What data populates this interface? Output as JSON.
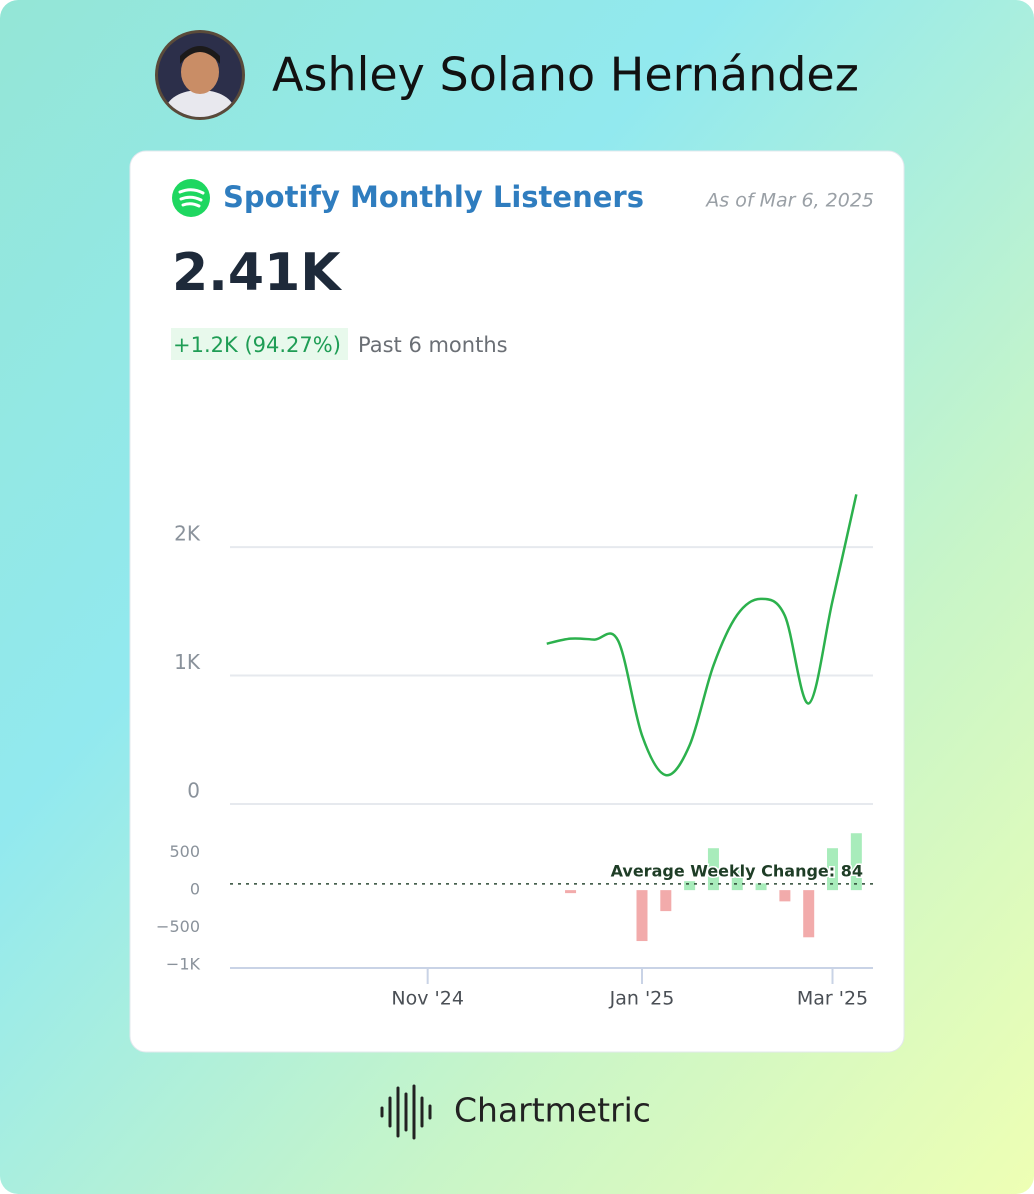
{
  "header": {
    "artist_name": "Ashley Solano Hernández"
  },
  "card": {
    "title": "Spotify Monthly Listeners",
    "as_of": "As of Mar 6, 2025",
    "current_value": "2.41K",
    "change": "+1.2K (94.27%)",
    "period": "Past 6 months"
  },
  "footer": {
    "brand": "Chartmetric"
  },
  "chart_data": [
    {
      "type": "line",
      "color": "#2cb14d",
      "values": [
        null,
        null,
        null,
        null,
        null,
        null,
        null,
        null,
        null,
        null,
        null,
        null,
        null,
        1248,
        1287,
        1280,
        1270,
        535,
        225,
        457,
        1078,
        1473,
        1597,
        1465,
        783,
        1581,
        2410
      ],
      "ylim": [
        0,
        2600
      ],
      "yticks": [
        0,
        {
          "value": 1000,
          "label": "1K"
        },
        {
          "value": 2000,
          "label": "2K"
        }
      ],
      "grid": true
    },
    {
      "type": "bar",
      "categories": [
        null,
        null,
        null,
        null,
        null,
        null,
        null,
        null,
        "Nov '24",
        null,
        null,
        null,
        null,
        null,
        null,
        null,
        null,
        "Jan '25",
        null,
        null,
        null,
        null,
        null,
        null,
        null,
        "Mar '25",
        null
      ],
      "values": [
        null,
        null,
        null,
        null,
        null,
        null,
        null,
        null,
        null,
        null,
        null,
        null,
        null,
        null,
        -40,
        null,
        null,
        -680,
        -280,
        120,
        560,
        270,
        90,
        -150,
        -630,
        560,
        760
      ],
      "positive_color": "#a8ecbb",
      "negative_color": "#f2abab",
      "ylim": [
        -1040,
        870
      ],
      "yticks": [
        500,
        0,
        {
          "value": -500,
          "label": "−500"
        },
        {
          "value": -1000,
          "label": "−1K"
        }
      ],
      "annotation": "Average Weekly Change: 84",
      "average": 84
    }
  ]
}
